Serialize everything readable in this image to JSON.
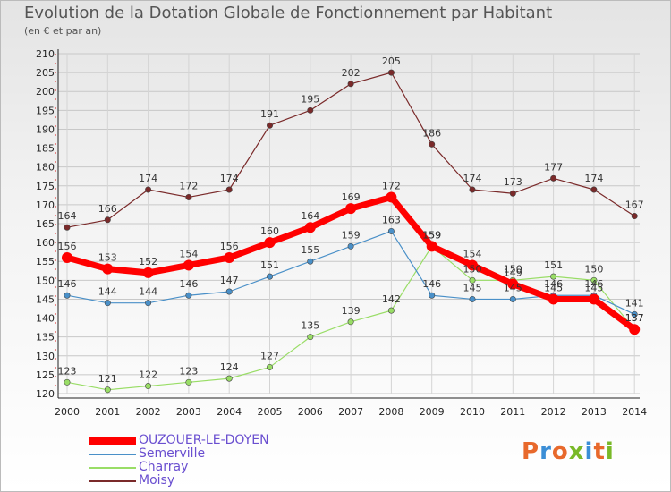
{
  "header": {
    "title": "Evolution de la Dotation Globale de Fonctionnement par Habitant",
    "subtitle": "(en € et par an)"
  },
  "logo": {
    "text": "Proxiti",
    "colors": [
      "#e8692c",
      "#3b8ed6",
      "#e8692c",
      "#79b928",
      "#3b8ed6",
      "#e8692c",
      "#79b928"
    ]
  },
  "chart_data": {
    "type": "line",
    "title": "Evolution de la Dotation Globale de Fonctionnement par Habitant",
    "subtitle": "(en € et par an)",
    "xlabel": "",
    "ylabel": "",
    "x": [
      "2000",
      "2001",
      "2002",
      "2003",
      "2004",
      "2005",
      "2006",
      "2007",
      "2008",
      "2009",
      "2010",
      "2011",
      "2012",
      "2013",
      "2014"
    ],
    "ylim": [
      120,
      210
    ],
    "yticks": [
      120,
      125,
      130,
      135,
      140,
      145,
      150,
      155,
      160,
      165,
      170,
      175,
      180,
      185,
      190,
      195,
      200,
      205,
      210
    ],
    "grid": true,
    "legend_position": "bottom-left",
    "series": [
      {
        "name": "OUZOUER-LE-DOYEN",
        "color": "#ff0000",
        "values": [
          156,
          153,
          152,
          154,
          156,
          160,
          164,
          169,
          172,
          159,
          154,
          149,
          145,
          145,
          137
        ]
      },
      {
        "name": "Semerville",
        "color": "#4a90c8",
        "values": [
          146,
          144,
          144,
          146,
          147,
          151,
          155,
          159,
          163,
          146,
          145,
          145,
          146,
          146,
          141
        ]
      },
      {
        "name": "Charray",
        "color": "#99dd66",
        "values": [
          123,
          121,
          122,
          123,
          124,
          127,
          135,
          139,
          142,
          159,
          150,
          150,
          151,
          150,
          137
        ]
      },
      {
        "name": "Moisy",
        "color": "#7a2a2a",
        "values": [
          164,
          166,
          174,
          172,
          174,
          191,
          195,
          202,
          205,
          186,
          174,
          173,
          177,
          174,
          167
        ]
      }
    ]
  }
}
